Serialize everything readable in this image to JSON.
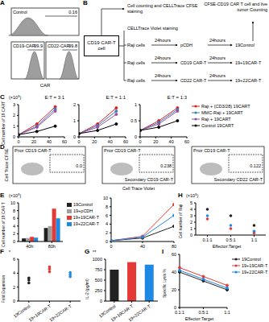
{
  "panel_labels": [
    "A",
    "B",
    "C",
    "D",
    "E",
    "F",
    "G",
    "H",
    "I"
  ],
  "flow_histograms": {
    "x_label": "CAR",
    "plots": [
      {
        "title": "Control",
        "gate": "0.16"
      },
      {
        "title": "CD19-CAR",
        "gate": "99.9"
      },
      {
        "title": "CD22-CAR",
        "gate": "99.8"
      }
    ]
  },
  "diagram": {
    "source": "CD19 CAR-T cell",
    "first_step": "Cell counting and CELLTrace CFSE staining",
    "second_step": "CELLTrace Violet staining",
    "target": "Raji cells",
    "time": "24hours",
    "readout": "CFSE-CD19 CAR T cell and live tumor Counting",
    "rows": [
      {
        "treatment": "pCDH",
        "group": "19Control"
      },
      {
        "treatment": "CD19 CAR-T",
        "group": "19+19CAR-T"
      },
      {
        "treatment": "CD22 CAR-T",
        "group": "19+22CAR-T"
      }
    ]
  },
  "flow_dots": {
    "y_label": "Cell Trace CFSE",
    "x_label": "Cell Trace Violet",
    "plots": [
      {
        "labels": [
          "Prior CD19 CAR-T"
        ],
        "gate": "0.0"
      },
      {
        "labels": [
          "Prior CD19 CAR-T",
          "Secondary CD19 CAR-T"
        ],
        "gate": "0.238"
      },
      {
        "labels": [
          "Prior CD19 CAR-T",
          "Secondary CD22 CAR-T"
        ],
        "gate": "0.122"
      }
    ]
  },
  "chart_data": [
    {
      "type": "line",
      "title": "E:T = 3:1",
      "y_label": "Cell number of 19 CART",
      "annotation": "(×10⁵)",
      "x": [
        0,
        24,
        48
      ],
      "xlim": [
        0,
        60
      ],
      "xticks": [
        0,
        20,
        40,
        60
      ],
      "ylim": [
        0,
        3
      ],
      "yticks": [
        0,
        1,
        2,
        3
      ],
      "series": [
        {
          "name": "Raji + (CD3/28) 19CART",
          "color": "#e41a1c",
          "values": [
            0.2,
            1.2,
            2.8
          ]
        },
        {
          "name": "MMC-Raji + 19CART",
          "color": "#377eb8",
          "values": [
            0.2,
            1.0,
            2.6
          ]
        },
        {
          "name": "Raji + 19CART",
          "color": "#984ea3",
          "values": [
            0.2,
            0.9,
            2.4
          ]
        },
        {
          "name": "Control 19CART",
          "color": "#000000",
          "values": [
            0.2,
            0.5,
            1.0
          ]
        }
      ]
    },
    {
      "type": "line",
      "title": "E:T = 1:1",
      "x": [
        0,
        24,
        48
      ],
      "xlim": [
        0,
        60
      ],
      "xticks": [
        0,
        20,
        40,
        60
      ],
      "ylim": [
        0,
        2
      ],
      "yticks": [
        0,
        1,
        2
      ],
      "series": [
        {
          "name": "Raji + (CD3/28) 19CART",
          "color": "#e41a1c",
          "values": [
            0.2,
            0.8,
            1.8
          ]
        },
        {
          "name": "MMC-Raji + 19CART",
          "color": "#377eb8",
          "values": [
            0.2,
            0.7,
            1.6
          ]
        },
        {
          "name": "Raji + 19CART",
          "color": "#984ea3",
          "values": [
            0.2,
            0.6,
            1.4
          ]
        },
        {
          "name": "Control 19CART",
          "color": "#000000",
          "values": [
            0.2,
            0.4,
            0.8
          ]
        }
      ]
    },
    {
      "type": "line",
      "title": "E:T = 1:3",
      "legend": "right",
      "x": [
        0,
        24,
        48
      ],
      "xlim": [
        0,
        60
      ],
      "xticks": [
        0,
        20,
        40,
        60
      ],
      "ylim": [
        0,
        1
      ],
      "yticks": [
        0,
        0.5,
        1
      ],
      "series": [
        {
          "name": "Raji + (CD3/28) 19CART",
          "color": "#e41a1c",
          "values": [
            0.2,
            0.5,
            0.9
          ]
        },
        {
          "name": "MMC-Raji + 19CART",
          "color": "#377eb8",
          "values": [
            0.2,
            0.45,
            0.85
          ]
        },
        {
          "name": "Raji + 19CART",
          "color": "#984ea3",
          "values": [
            0.2,
            0.4,
            0.8
          ]
        },
        {
          "name": "Control 19CART",
          "color": "#000000",
          "values": [
            0.2,
            0.3,
            0.5
          ]
        }
      ]
    },
    {
      "type": "bar",
      "y_label": "Cell number of 19 CAR T",
      "annotation": "(×10⁵)",
      "legend": "right",
      "categories": [
        "40h",
        "80h"
      ],
      "ylim": [
        0,
        10
      ],
      "yticks": [
        0,
        2,
        4,
        6,
        8,
        10
      ],
      "series": [
        {
          "name": "19Control",
          "color": "#222222",
          "values": [
            0.8,
            3.5
          ]
        },
        {
          "name": "19+pCDH",
          "color": "#9e9e9e",
          "values": [
            0.9,
            4.0
          ]
        },
        {
          "name": "19+19CAR-T",
          "color": "#e53935",
          "values": [
            1.2,
            8.5
          ]
        },
        {
          "name": "19+22CAR-T",
          "color": "#1e88e5",
          "values": [
            1.0,
            6.0
          ]
        }
      ]
    },
    {
      "type": "line",
      "x": [
        0,
        40,
        80
      ],
      "xlim": [
        0,
        80
      ],
      "xticks": [
        0,
        40,
        80
      ],
      "ylim": [
        0,
        10
      ],
      "yticks": [
        0,
        2,
        4,
        6,
        8,
        10
      ],
      "series": [
        {
          "name": "19Control",
          "color": "#222222",
          "values": [
            0.2,
            0.8,
            3.5
          ]
        },
        {
          "name": "19+19CAR-T",
          "color": "#e53935",
          "values": [
            0.2,
            1.2,
            8.5
          ]
        },
        {
          "name": "19+22CAR-T",
          "color": "#1e88e5",
          "values": [
            0.2,
            1.0,
            6.0
          ]
        }
      ]
    },
    {
      "type": "strip",
      "y_label": "Fold Expansion",
      "annotation": "*",
      "categories": [
        "19Control",
        "19+19CAR-T",
        "19+22CAR-T"
      ],
      "colors": [
        "#222222",
        "#e53935",
        "#1e88e5"
      ],
      "values": [
        [
          2.6,
          3.0,
          3.3
        ],
        [
          4.2,
          4.6,
          4.9
        ],
        [
          3.5,
          3.8,
          4.1
        ]
      ],
      "ylim": [
        0,
        6
      ],
      "yticks": [
        0,
        2,
        4,
        6
      ]
    },
    {
      "type": "bar",
      "y_label": "IL-2 (pg/ml)",
      "annotation": "**",
      "categories": [
        "19Control",
        "19+19CAR-T",
        "19+22CAR-T"
      ],
      "colors": [
        "#222222",
        "#e53935",
        "#1e88e5"
      ],
      "values": [
        750,
        930,
        870
      ],
      "ylim": [
        0,
        1000
      ],
      "yticks": [
        0,
        250,
        500,
        750,
        1000
      ]
    },
    {
      "type": "scatter",
      "y_label": "Cell number of Raji",
      "annotation": "(×10⁵)",
      "x_label": "Effector:Target",
      "categories": [
        "0.1:1",
        "0.5:1",
        "1:1"
      ],
      "ylim": [
        0,
        5
      ],
      "yticks": [
        0,
        1,
        2,
        3,
        4,
        5
      ],
      "series": [
        {
          "name": "19Control",
          "color": "#222222",
          "values": [
            4,
            3,
            1.5
          ]
        },
        {
          "name": "19+19CAR-T",
          "color": "#e53935",
          "values": [
            2.5,
            1,
            0.3
          ]
        },
        {
          "name": "19+22CAR-T",
          "color": "#1e88e5",
          "values": [
            3,
            1.5,
            0.6
          ]
        }
      ]
    },
    {
      "type": "line",
      "y_label": "Specific Lysis %",
      "x_label": "Effector:Target",
      "legend": "right",
      "categories": [
        "0.1:1",
        "0.5:1",
        "1:1"
      ],
      "ylim": [
        0,
        60
      ],
      "yticks": [
        0,
        20,
        40,
        60
      ],
      "series": [
        {
          "name": "19Control",
          "color": "#222222",
          "values": [
            40,
            30,
            20
          ]
        },
        {
          "name": "19+19CAR-T",
          "color": "#e53935",
          "values": [
            45,
            35,
            25
          ]
        },
        {
          "name": "19+22CAR-T",
          "color": "#1e88e5",
          "values": [
            42,
            32,
            22
          ]
        }
      ]
    }
  ]
}
